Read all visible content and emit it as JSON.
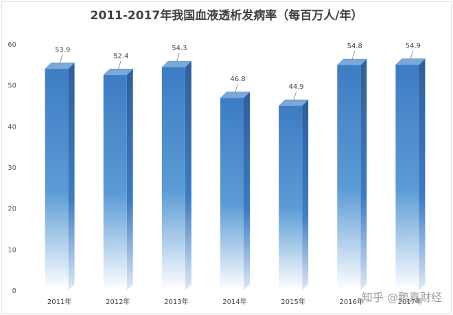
{
  "chart_data": {
    "type": "bar",
    "title": "2011-2017年我国血液透析发病率（每百万人/年）",
    "categories": [
      "2011年",
      "2012年",
      "2013年",
      "2014年",
      "2015年",
      "2016年",
      "2017年"
    ],
    "values": [
      53.9,
      52.4,
      54.3,
      46.8,
      44.9,
      54.8,
      54.9
    ],
    "data_labels": [
      "53.9",
      "52.4",
      "54.3",
      "46.8",
      "44.9",
      "54.8",
      "54.9"
    ],
    "y_ticks": [
      "0",
      "10",
      "20",
      "30",
      "40",
      "50",
      "60"
    ],
    "ylim": [
      0,
      60
    ],
    "grid": false,
    "legend": "none",
    "style": "3d-column",
    "colors": {
      "bar_top": "#3d7cc4",
      "bar_mid": "#5b9bd5",
      "bar_bottom": "#ffffff",
      "bar_side": "#2f5f99",
      "bar_cap": "#7aa8d8",
      "frame": "#d9d9d9"
    }
  },
  "watermark": "知乎 @鹏嘉财经"
}
